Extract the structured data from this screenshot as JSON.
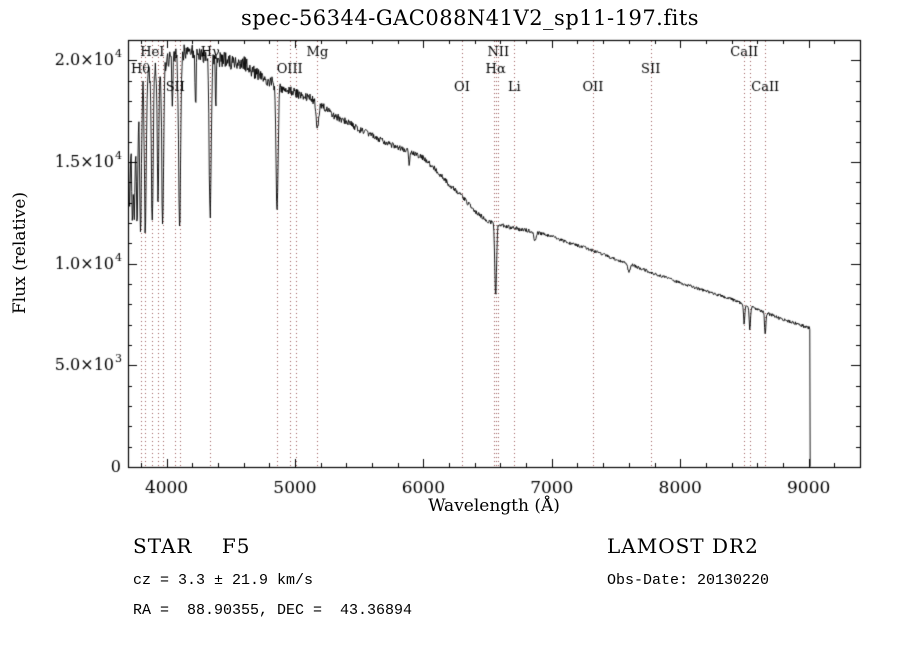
{
  "title": "spec-56344-GAC088N41V2_sp11-197.fits",
  "axes": {
    "xlabel": "Wavelength (Å)",
    "ylabel": "Flux (relative)",
    "xlim": [
      3700,
      9400
    ],
    "ylim": [
      0,
      21000
    ],
    "xticks": [
      4000,
      5000,
      6000,
      7000,
      8000,
      9000
    ],
    "xminor_step": 200,
    "yticks": [
      0,
      5000,
      10000,
      15000,
      20000
    ],
    "yminor_step": 1000,
    "ytick_labels": [
      {
        "base": "0",
        "exp": ""
      },
      {
        "base": "5.0×10",
        "exp": "3"
      },
      {
        "base": "1.0×10",
        "exp": "4"
      },
      {
        "base": "1.5×10",
        "exp": "4"
      },
      {
        "base": "2.0×10",
        "exp": "4"
      }
    ]
  },
  "chart_data": {
    "type": "line",
    "title": "spec-56344-GAC088N41V2_sp11-197.fits",
    "xlabel": "Wavelength (Å)",
    "ylabel": "Flux (relative)",
    "xlim": [
      3700,
      9400
    ],
    "ylim": [
      0,
      21000
    ],
    "x_unit": "Å",
    "line_color": "#000000",
    "marker_color": "#9b5a5a",
    "x_start": 3705,
    "x_end": 9010,
    "x_step": 4,
    "edge_drop_wavelength": 9012,
    "continuum": [
      [
        3700,
        17000
      ],
      [
        3750,
        18300
      ],
      [
        3800,
        18900
      ],
      [
        3850,
        19300
      ],
      [
        3900,
        19700
      ],
      [
        3950,
        19900
      ],
      [
        4000,
        20000
      ],
      [
        4100,
        20300
      ],
      [
        4200,
        20400
      ],
      [
        4300,
        20300
      ],
      [
        4400,
        20100
      ],
      [
        4500,
        19900
      ],
      [
        4600,
        19900
      ],
      [
        4700,
        19300
      ],
      [
        4800,
        19000
      ],
      [
        4900,
        18600
      ],
      [
        5000,
        18400
      ],
      [
        5100,
        18200
      ],
      [
        5200,
        17800
      ],
      [
        5300,
        17300
      ],
      [
        5400,
        17000
      ],
      [
        5500,
        16600
      ],
      [
        5600,
        16300
      ],
      [
        5700,
        16000
      ],
      [
        5800,
        15700
      ],
      [
        5900,
        15500
      ],
      [
        6000,
        15200
      ],
      [
        6100,
        14600
      ],
      [
        6200,
        13900
      ],
      [
        6300,
        13300
      ],
      [
        6400,
        12600
      ],
      [
        6500,
        12100
      ],
      [
        6600,
        11900
      ],
      [
        6700,
        11750
      ],
      [
        6800,
        11650
      ],
      [
        6900,
        11500
      ],
      [
        7000,
        11350
      ],
      [
        7100,
        11100
      ],
      [
        7200,
        10900
      ],
      [
        7300,
        10700
      ],
      [
        7400,
        10450
      ],
      [
        7500,
        10200
      ],
      [
        7600,
        10000
      ],
      [
        7700,
        9750
      ],
      [
        7800,
        9500
      ],
      [
        7900,
        9300
      ],
      [
        8000,
        9050
      ],
      [
        8100,
        8850
      ],
      [
        8200,
        8650
      ],
      [
        8300,
        8450
      ],
      [
        8400,
        8250
      ],
      [
        8500,
        8000
      ],
      [
        8600,
        7750
      ],
      [
        8700,
        7500
      ],
      [
        8800,
        7250
      ],
      [
        9000,
        6850
      ],
      [
        9010,
        6800
      ]
    ],
    "absorption_lines": [
      [
        3712,
        0.26,
        6
      ],
      [
        3734,
        0.3,
        6
      ],
      [
        3750,
        0.32,
        6
      ],
      [
        3771,
        0.36,
        6
      ],
      [
        3798,
        0.38,
        7
      ],
      [
        3835,
        0.4,
        7
      ],
      [
        3889,
        0.4,
        7
      ],
      [
        3934,
        0.36,
        6
      ],
      [
        3970,
        0.42,
        7
      ],
      [
        4045,
        0.12,
        4
      ],
      [
        4102,
        0.42,
        8
      ],
      [
        4226,
        0.14,
        4
      ],
      [
        4340,
        0.4,
        8
      ],
      [
        4383,
        0.12,
        4
      ],
      [
        4861,
        0.33,
        8
      ],
      [
        5175,
        0.07,
        9
      ],
      [
        5890,
        0.05,
        5
      ],
      [
        6563,
        0.3,
        7
      ],
      [
        6870,
        0.04,
        8
      ],
      [
        7600,
        0.04,
        10
      ],
      [
        8498,
        0.12,
        5
      ],
      [
        8542,
        0.15,
        5
      ],
      [
        8662,
        0.15,
        5
      ]
    ],
    "noise_profile": [
      [
        3700,
        500
      ],
      [
        4000,
        470
      ],
      [
        4400,
        420
      ],
      [
        4800,
        300
      ],
      [
        5100,
        220
      ],
      [
        5400,
        170
      ],
      [
        5800,
        140
      ],
      [
        6200,
        120
      ],
      [
        6600,
        100
      ],
      [
        7000,
        85
      ],
      [
        7600,
        75
      ],
      [
        8200,
        70
      ],
      [
        8800,
        80
      ],
      [
        9010,
        90
      ]
    ],
    "markers": [
      {
        "wavelength": 3798,
        "label": "Hθ",
        "row": 2
      },
      {
        "wavelength": 3835,
        "label": "",
        "row": 0
      },
      {
        "wavelength": 3889,
        "label": "HeI",
        "row": 1
      },
      {
        "wavelength": 3934,
        "label": "",
        "row": 0
      },
      {
        "wavelength": 3970,
        "label": "",
        "row": 0
      },
      {
        "wavelength": 4068,
        "label": "SII",
        "row": 3
      },
      {
        "wavelength": 4102,
        "label": "",
        "row": 0
      },
      {
        "wavelength": 4340,
        "label": "Hγ",
        "row": 1
      },
      {
        "wavelength": 4861,
        "label": "",
        "row": 0
      },
      {
        "wavelength": 4959,
        "label": "OIII",
        "row": 2
      },
      {
        "wavelength": 5007,
        "label": "",
        "row": 0
      },
      {
        "wavelength": 5175,
        "label": "Mg",
        "row": 1
      },
      {
        "wavelength": 6300,
        "label": "OI",
        "row": 3
      },
      {
        "wavelength": 6548,
        "label": "",
        "row": 0
      },
      {
        "wavelength": 6563,
        "label": "Hα",
        "row": 2
      },
      {
        "wavelength": 6583,
        "label": "NII",
        "row": 1
      },
      {
        "wavelength": 6708,
        "label": "Li",
        "row": 3
      },
      {
        "wavelength": 7320,
        "label": "OII",
        "row": 3
      },
      {
        "wavelength": 7770,
        "label": "SII",
        "row": 2
      },
      {
        "wavelength": 8498,
        "label": "CaII",
        "row": 1
      },
      {
        "wavelength": 8542,
        "label": "",
        "row": 0
      },
      {
        "wavelength": 8662,
        "label": "CaII",
        "row": 3
      }
    ]
  },
  "annotations": {
    "class_label": "STAR    F5",
    "survey": "LAMOST DR2",
    "cz": "cz = 3.3 ± 21.9 km/s",
    "obs_date": "Obs-Date: 20130220",
    "coords": "RA =  88.90355, DEC =  43.36894"
  }
}
